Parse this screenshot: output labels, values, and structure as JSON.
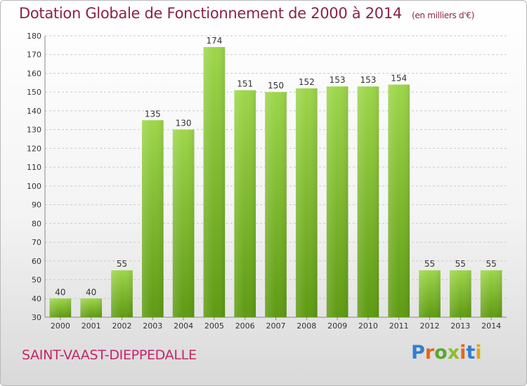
{
  "header": {
    "title": "Dotation Globale de Fonctionnement de 2000 à 2014",
    "unit": "(en milliers d'€)"
  },
  "commune": "SAINT-VAAST-DIEPPEDALLE",
  "logo": {
    "text": "Proxiti"
  },
  "colors": {
    "bar_top": "#9dd64a",
    "bar_bottom": "#5e9a12",
    "title": "#8a2248",
    "commune": "#c4256a"
  },
  "chart_data": {
    "type": "bar",
    "title": "Dotation Globale de Fonctionnement de 2000 à 2014",
    "subtitle": "(en milliers d'€)",
    "xlabel": "",
    "ylabel": "",
    "categories": [
      "2000",
      "2001",
      "2002",
      "2003",
      "2004",
      "2005",
      "2006",
      "2007",
      "2008",
      "2009",
      "2010",
      "2011",
      "2012",
      "2013",
      "2014"
    ],
    "values": [
      40,
      40,
      55,
      135,
      130,
      174,
      151,
      150,
      152,
      153,
      153,
      154,
      55,
      55,
      55
    ],
    "ylim": [
      30,
      180
    ],
    "yticks": [
      30,
      40,
      50,
      60,
      70,
      80,
      90,
      100,
      110,
      120,
      130,
      140,
      150,
      160,
      170,
      180
    ],
    "grid": true,
    "legend": "none"
  }
}
